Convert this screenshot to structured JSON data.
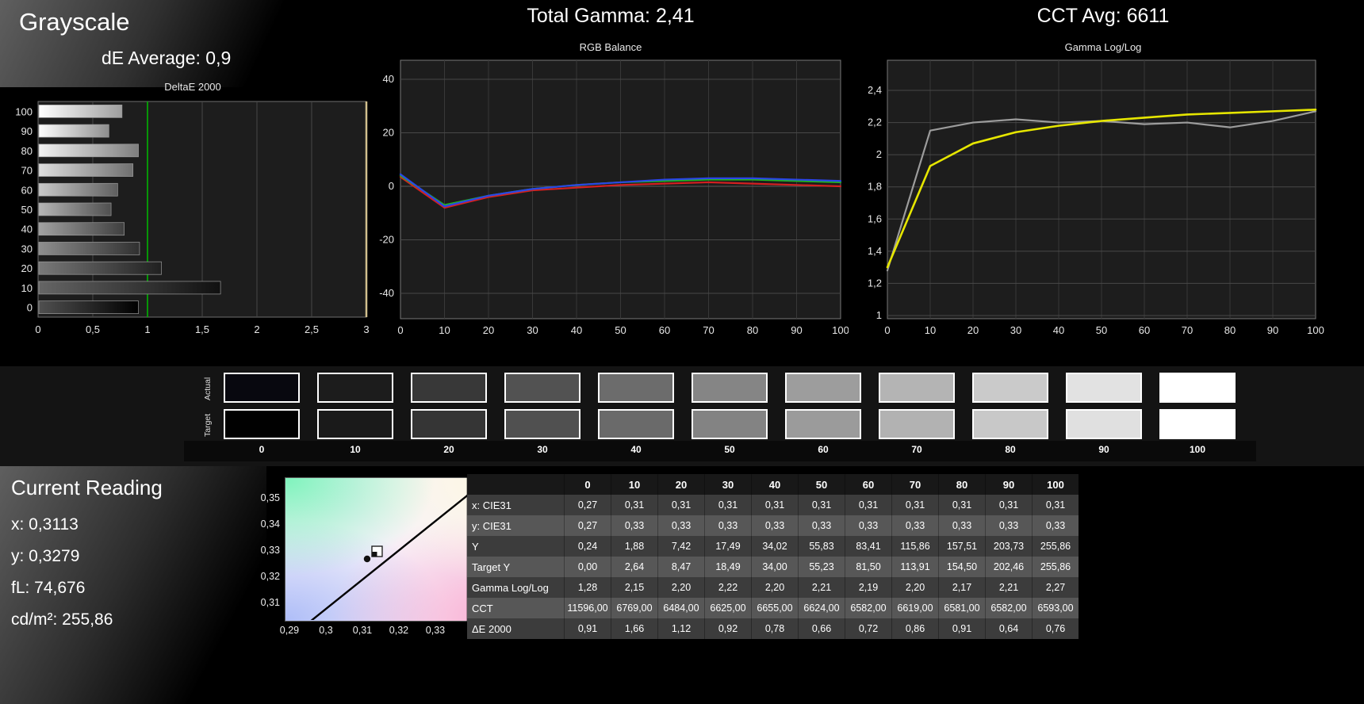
{
  "page": {
    "title": "Grayscale",
    "de_average": "dE Average: 0,9",
    "total_gamma": "Total Gamma: 2,41",
    "cct_avg": "CCT Avg: 6611"
  },
  "current_reading": {
    "title": "Current Reading",
    "lines": [
      "x: 0,3113",
      "y: 0,3279",
      "fL: 74,676",
      "cd/m²: 255,86"
    ]
  },
  "swatches": {
    "row_labels": [
      "Actual",
      "Target"
    ],
    "labels": [
      "0",
      "10",
      "20",
      "30",
      "40",
      "50",
      "60",
      "70",
      "80",
      "90",
      "100"
    ],
    "actual_colors": [
      "#08080f",
      "#1c1c1c",
      "#383838",
      "#525252",
      "#6c6c6c",
      "#858585",
      "#9d9d9d",
      "#b4b4b4",
      "#cacaca",
      "#e2e2e2",
      "#ffffff"
    ],
    "target_colors": [
      "#010101",
      "#1a1a1a",
      "#353535",
      "#505050",
      "#6a6a6a",
      "#838383",
      "#9b9b9b",
      "#b2b2b2",
      "#c8c8c8",
      "#e0e0e0",
      "#ffffff"
    ]
  },
  "chart_data": [
    {
      "type": "bar",
      "title": "DeltaE 2000",
      "orientation": "horizontal",
      "categories": [
        "100",
        "90",
        "80",
        "70",
        "60",
        "50",
        "40",
        "30",
        "20",
        "10",
        "0"
      ],
      "values": [
        0.76,
        0.64,
        0.91,
        0.86,
        0.72,
        0.66,
        0.78,
        0.92,
        1.12,
        1.66,
        0.91
      ],
      "xlim": [
        0,
        3
      ],
      "x_tick_values": [
        0,
        0.5,
        1,
        1.5,
        2,
        2.5,
        3
      ],
      "x_tick_labels": [
        "0",
        "0,5",
        "1",
        "1,5",
        "2",
        "2,5",
        "3"
      ],
      "reference_line": 1,
      "reference_color": "#00b400",
      "edge_line_color": "#d2c08e"
    },
    {
      "type": "line",
      "title": "RGB Balance",
      "x": [
        0,
        10,
        20,
        30,
        40,
        50,
        60,
        70,
        80,
        90,
        100
      ],
      "ylim": [
        -50,
        50
      ],
      "y_tick_values": [
        40,
        20,
        0,
        -20,
        -40
      ],
      "y_tick_labels": [
        "40",
        "20",
        "0",
        "-20",
        "-40"
      ],
      "series": [
        {
          "name": "red",
          "color": "#d42020",
          "values": [
            3.5,
            -8.0,
            -4.0,
            -1.5,
            -0.5,
            0.5,
            1.0,
            1.5,
            1.0,
            0.5,
            0.0
          ]
        },
        {
          "name": "green",
          "color": "#22b422",
          "values": [
            4.0,
            -7.0,
            -3.5,
            -1.0,
            0.5,
            1.5,
            2.0,
            2.5,
            2.5,
            2.0,
            1.5
          ]
        },
        {
          "name": "blue",
          "color": "#2a46e6",
          "values": [
            4.5,
            -7.5,
            -3.5,
            -1.0,
            0.5,
            1.5,
            2.5,
            3.0,
            3.0,
            2.5,
            2.0
          ]
        }
      ]
    },
    {
      "type": "line",
      "title": "Gamma Log/Log",
      "x": [
        0,
        10,
        20,
        30,
        40,
        50,
        60,
        70,
        80,
        90,
        100
      ],
      "ylim": [
        1,
        2.5
      ],
      "y_tick_values": [
        2.4,
        2.2,
        2,
        1.8,
        1.6,
        1.4,
        1.2,
        1
      ],
      "y_tick_labels": [
        "2,4",
        "2,2",
        "2",
        "1,8",
        "1,6",
        "1,4",
        "1,2",
        "1"
      ],
      "series": [
        {
          "name": "measured-gamma",
          "color": "#9c9c9c",
          "values": [
            1.28,
            2.15,
            2.2,
            2.22,
            2.2,
            2.21,
            2.19,
            2.2,
            2.17,
            2.21,
            2.27
          ]
        },
        {
          "name": "target-gamma",
          "color": "#e6e600",
          "values": [
            1.3,
            1.93,
            2.07,
            2.14,
            2.18,
            2.21,
            2.23,
            2.25,
            2.26,
            2.27,
            2.28
          ]
        }
      ]
    },
    {
      "type": "scatter",
      "title": "CIE xy chromaticity",
      "xlim": [
        0.2887,
        0.351
      ],
      "ylim": [
        0.3033,
        0.3579
      ],
      "x_tick_values": [
        0.29,
        0.3,
        0.31,
        0.32,
        0.33
      ],
      "x_tick_labels": [
        "0,29",
        "0,3",
        "0,31",
        "0,32",
        "0,33"
      ],
      "y_tick_values": [
        0.35,
        0.34,
        0.33,
        0.32,
        0.31
      ],
      "y_tick_labels": [
        "0,35",
        "0,34",
        "0,33",
        "0,32",
        "0,31"
      ],
      "locus": [
        [
          0.2959,
          0.303
        ],
        [
          0.345,
          0.3579
        ]
      ],
      "points": [
        {
          "x": 0.3113,
          "y": 0.3279
        }
      ]
    }
  ],
  "table": {
    "columns": [
      "0",
      "10",
      "20",
      "30",
      "40",
      "50",
      "60",
      "70",
      "80",
      "90",
      "100"
    ],
    "rows": [
      {
        "label": "x: CIE31",
        "values": [
          "0,27",
          "0,31",
          "0,31",
          "0,31",
          "0,31",
          "0,31",
          "0,31",
          "0,31",
          "0,31",
          "0,31",
          "0,31"
        ]
      },
      {
        "label": "y: CIE31",
        "values": [
          "0,27",
          "0,33",
          "0,33",
          "0,33",
          "0,33",
          "0,33",
          "0,33",
          "0,33",
          "0,33",
          "0,33",
          "0,33"
        ]
      },
      {
        "label": "Y",
        "values": [
          "0,24",
          "1,88",
          "7,42",
          "17,49",
          "34,02",
          "55,83",
          "83,41",
          "115,86",
          "157,51",
          "203,73",
          "255,86"
        ]
      },
      {
        "label": "Target Y",
        "values": [
          "0,00",
          "2,64",
          "8,47",
          "18,49",
          "34,00",
          "55,23",
          "81,50",
          "113,91",
          "154,50",
          "202,46",
          "255,86"
        ]
      },
      {
        "label": "Gamma Log/Log",
        "values": [
          "1,28",
          "2,15",
          "2,20",
          "2,22",
          "2,20",
          "2,21",
          "2,19",
          "2,20",
          "2,17",
          "2,21",
          "2,27"
        ]
      },
      {
        "label": "CCT",
        "values": [
          "11596,00",
          "6769,00",
          "6484,00",
          "6625,00",
          "6655,00",
          "6624,00",
          "6582,00",
          "6619,00",
          "6581,00",
          "6582,00",
          "6593,00"
        ]
      },
      {
        "label": "ΔE 2000",
        "values": [
          "0,91",
          "1,66",
          "1,12",
          "0,92",
          "0,78",
          "0,66",
          "0,72",
          "0,86",
          "0,91",
          "0,64",
          "0,76"
        ]
      }
    ]
  }
}
